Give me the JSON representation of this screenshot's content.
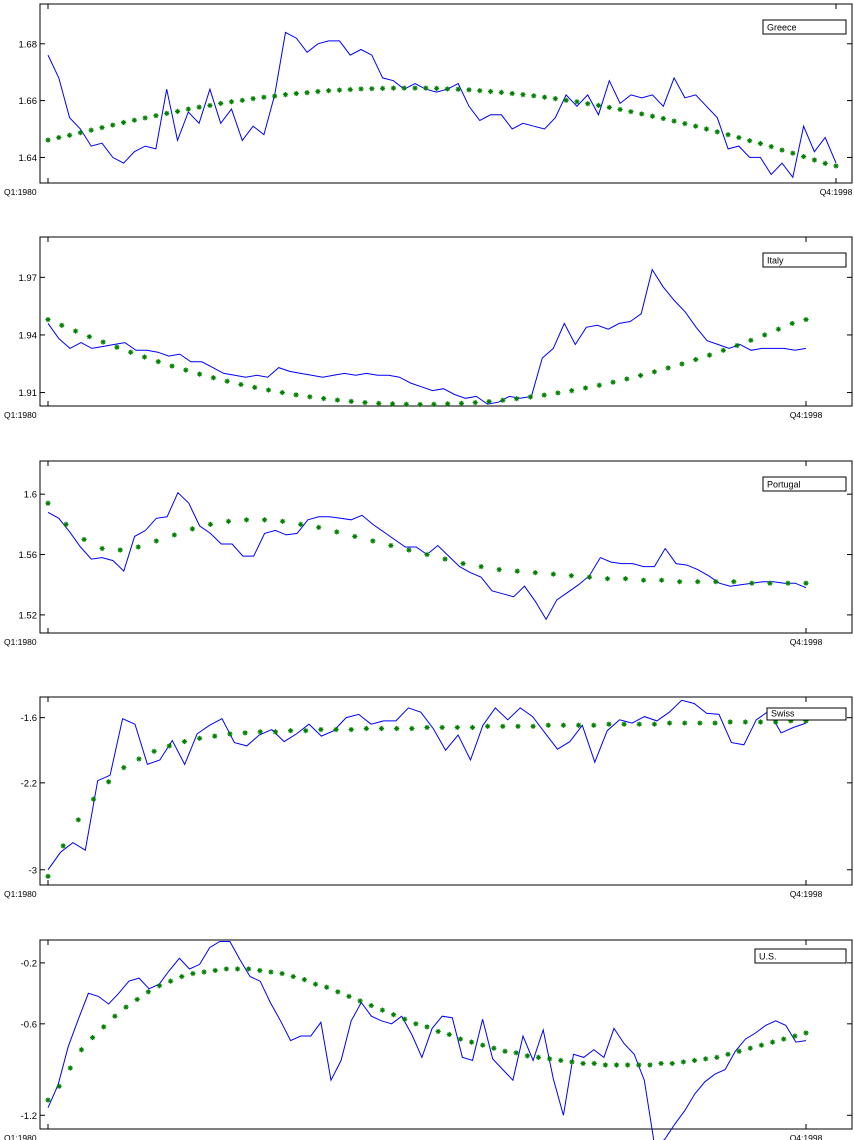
{
  "colors": {
    "actual_line": "#0000ff",
    "fitted_markers": "#008000",
    "frame": "#000000",
    "background": "#ffffff"
  },
  "chart_data": [
    {
      "type": "line",
      "legend": "Greece",
      "legend_position": "top-right",
      "x_start_label": "Q1:1980",
      "x_end_label": "Q4:1998",
      "yticks": [
        "1.64",
        "1.66",
        "1.68"
      ],
      "ylim": [
        1.631,
        1.694
      ],
      "grid": false,
      "series": [
        {
          "values": [
            1.676,
            1.668,
            1.654,
            1.65,
            1.644,
            1.645,
            1.64,
            1.638,
            1.642,
            1.644,
            1.643,
            1.664,
            1.646,
            1.656,
            1.652,
            1.664,
            1.652,
            1.657,
            1.646,
            1.651,
            1.648,
            1.662,
            1.684,
            1.682,
            1.677,
            1.68,
            1.681,
            1.681,
            1.676,
            1.678,
            1.676,
            1.668,
            1.667,
            1.664,
            1.666,
            1.664,
            1.663,
            1.664,
            1.666,
            1.658,
            1.653,
            1.655,
            1.655,
            1.65,
            1.652,
            1.651,
            1.65,
            1.654,
            1.662,
            1.658,
            1.662,
            1.655,
            1.667,
            1.659,
            1.662,
            1.661,
            1.662,
            1.658,
            1.668,
            1.661,
            1.662,
            1.658,
            1.654,
            1.643,
            1.644,
            1.64,
            1.64,
            1.634,
            1.638,
            1.633,
            1.651,
            1.642,
            1.647,
            1.638
          ]
        },
        {
          "values": [
            1.6461,
            1.647,
            1.6478,
            1.6487,
            1.6496,
            1.6505,
            1.6514,
            1.6523,
            1.6531,
            1.6539,
            1.6547,
            1.6555,
            1.6562,
            1.657,
            1.6577,
            1.6583,
            1.659,
            1.6596,
            1.6601,
            1.6607,
            1.6612,
            1.6616,
            1.6621,
            1.6625,
            1.6628,
            1.6632,
            1.6635,
            1.6637,
            1.6639,
            1.6641,
            1.6642,
            1.6643,
            1.6644,
            1.6644,
            1.6644,
            1.6644,
            1.6643,
            1.6641,
            1.664,
            1.6638,
            1.6635,
            1.6632,
            1.6629,
            1.6625,
            1.6621,
            1.6617,
            1.6612,
            1.6607,
            1.6601,
            1.6596,
            1.6589,
            1.6583,
            1.6576,
            1.6569,
            1.6561,
            1.6553,
            1.6545,
            1.6537,
            1.6528,
            1.6519,
            1.651,
            1.65,
            1.649,
            1.648,
            1.647,
            1.6459,
            1.6449,
            1.6438,
            1.6426,
            1.6415,
            1.6403,
            1.6391,
            1.6379,
            1.637
          ]
        }
      ]
    },
    {
      "type": "line",
      "legend": "Italy",
      "legend_position": "top-right",
      "x_start_label": "Q1:1980",
      "x_end_label": "Q4:1998",
      "yticks": [
        "1.91",
        "1.94",
        "1.97"
      ],
      "ylim": [
        1.903,
        1.991
      ],
      "grid": false,
      "series": [
        {
          "values": [
            1.946,
            1.938,
            1.933,
            1.936,
            1.933,
            1.934,
            1.935,
            1.936,
            1.932,
            1.932,
            1.931,
            1.929,
            1.93,
            1.926,
            1.926,
            1.923,
            1.92,
            1.919,
            1.918,
            1.919,
            1.918,
            1.923,
            1.921,
            1.92,
            1.919,
            1.918,
            1.919,
            1.92,
            1.919,
            1.92,
            1.919,
            1.919,
            1.918,
            1.915,
            1.913,
            1.911,
            1.912,
            1.909,
            1.907,
            1.908,
            1.904,
            1.905,
            1.908,
            1.907,
            1.908,
            1.928,
            1.933,
            1.946,
            1.935,
            1.944,
            1.945,
            1.943,
            1.946,
            1.947,
            1.951,
            1.974,
            1.965,
            1.958,
            1.952,
            1.944,
            1.937,
            1.935,
            1.933,
            1.935,
            1.932,
            1.933,
            1.933,
            1.933,
            1.932,
            1.933
          ]
        },
        {
          "values": [
            1.948,
            1.945,
            1.942,
            1.9391,
            1.9363,
            1.9336,
            1.931,
            1.9285,
            1.9261,
            1.9238,
            1.9217,
            1.9196,
            1.9177,
            1.9159,
            1.9142,
            1.9127,
            1.9113,
            1.91,
            1.9088,
            1.9078,
            1.9069,
            1.9061,
            1.9054,
            1.9048,
            1.9044,
            1.9041,
            1.9039,
            1.9038,
            1.9039,
            1.9041,
            1.9044,
            1.9048,
            1.9053,
            1.906,
            1.9068,
            1.9077,
            1.9087,
            1.9098,
            1.911,
            1.9124,
            1.9138,
            1.9154,
            1.9171,
            1.9189,
            1.9208,
            1.9228,
            1.9249,
            1.9272,
            1.9295,
            1.932,
            1.9345,
            1.9372,
            1.94,
            1.943,
            1.946,
            1.948
          ]
        }
      ]
    },
    {
      "type": "line",
      "legend": "Portugal",
      "legend_position": "top-right",
      "x_start_label": "Q1:1980",
      "x_end_label": "Q4:1998",
      "yticks": [
        "1.52",
        "1.56",
        "1.6"
      ],
      "ylim": [
        1.508,
        1.622
      ],
      "grid": false,
      "series": [
        {
          "values": [
            1.588,
            1.584,
            1.575,
            1.565,
            1.557,
            1.558,
            1.556,
            1.549,
            1.572,
            1.576,
            1.584,
            1.585,
            1.601,
            1.594,
            1.579,
            1.574,
            1.567,
            1.567,
            1.559,
            1.559,
            1.574,
            1.576,
            1.573,
            1.574,
            1.583,
            1.585,
            1.585,
            1.584,
            1.583,
            1.586,
            1.58,
            1.575,
            1.57,
            1.565,
            1.565,
            1.56,
            1.566,
            1.559,
            1.552,
            1.548,
            1.545,
            1.536,
            1.534,
            1.532,
            1.539,
            1.529,
            1.517,
            1.53,
            1.535,
            1.54,
            1.546,
            1.558,
            1.555,
            1.554,
            1.554,
            1.552,
            1.552,
            1.564,
            1.554,
            1.553,
            1.55,
            1.546,
            1.541,
            1.539,
            1.54,
            1.541,
            1.542,
            1.542,
            1.541,
            1.541,
            1.538
          ]
        },
        {
          "values": [
            1.594,
            1.58,
            1.57,
            1.564,
            1.563,
            1.565,
            1.569,
            1.573,
            1.577,
            1.58,
            1.582,
            1.583,
            1.583,
            1.582,
            1.58,
            1.578,
            1.575,
            1.572,
            1.569,
            1.566,
            1.563,
            1.56,
            1.557,
            1.554,
            1.552,
            1.55,
            1.549,
            1.548,
            1.547,
            1.546,
            1.545,
            1.544,
            1.544,
            1.543,
            1.543,
            1.542,
            1.542,
            1.542,
            1.542,
            1.541,
            1.541,
            1.541,
            1.541
          ]
        }
      ]
    },
    {
      "type": "line",
      "legend": "Swiss",
      "legend_position": "top-right",
      "x_start_label": "Q1:1980",
      "x_end_label": "Q4:1998",
      "yticks": [
        "-3",
        "-2.2",
        "-1.6"
      ],
      "ylim": [
        -3.14,
        -1.41
      ],
      "grid": false,
      "series": [
        {
          "values": [
            -3.0,
            -2.84,
            -2.75,
            -2.82,
            -2.18,
            -2.13,
            -1.61,
            -1.66,
            -2.03,
            -1.99,
            -1.81,
            -2.03,
            -1.75,
            -1.67,
            -1.61,
            -1.83,
            -1.86,
            -1.76,
            -1.71,
            -1.82,
            -1.75,
            -1.66,
            -1.77,
            -1.72,
            -1.6,
            -1.57,
            -1.66,
            -1.63,
            -1.63,
            -1.51,
            -1.55,
            -1.7,
            -1.9,
            -1.76,
            -1.99,
            -1.67,
            -1.51,
            -1.62,
            -1.51,
            -1.59,
            -1.74,
            -1.89,
            -1.82,
            -1.67,
            -2.01,
            -1.72,
            -1.62,
            -1.65,
            -1.59,
            -1.63,
            -1.55,
            -1.44,
            -1.47,
            -1.56,
            -1.57,
            -1.83,
            -1.85,
            -1.62,
            -1.54,
            -1.74,
            -1.69,
            -1.65
          ]
        },
        {
          "values": [
            -3.06,
            -2.78,
            -2.54,
            -2.35,
            -2.19,
            -2.06,
            -1.98,
            -1.91,
            -1.86,
            -1.82,
            -1.79,
            -1.77,
            -1.75,
            -1.74,
            -1.73,
            -1.73,
            -1.72,
            -1.72,
            -1.71,
            -1.71,
            -1.71,
            -1.7,
            -1.7,
            -1.7,
            -1.7,
            -1.69,
            -1.69,
            -1.69,
            -1.69,
            -1.68,
            -1.68,
            -1.68,
            -1.68,
            -1.67,
            -1.67,
            -1.67,
            -1.67,
            -1.66,
            -1.66,
            -1.66,
            -1.66,
            -1.65,
            -1.65,
            -1.65,
            -1.65,
            -1.64,
            -1.64,
            -1.64,
            -1.64,
            -1.63,
            -1.63
          ]
        }
      ]
    },
    {
      "type": "line",
      "legend": "U.S.",
      "legend_position": "top-right",
      "x_start_label": "Q1:1980",
      "x_end_label": "Q4:1998",
      "yticks": [
        "-1.2",
        "-0.6",
        "-0.2"
      ],
      "ylim": [
        -1.29,
        -0.05
      ],
      "grid": false,
      "series": [
        {
          "values": [
            -1.15,
            -1.0,
            -0.75,
            -0.57,
            -0.4,
            -0.42,
            -0.47,
            -0.4,
            -0.32,
            -0.3,
            -0.37,
            -0.34,
            -0.25,
            -0.17,
            -0.24,
            -0.21,
            -0.1,
            -0.06,
            -0.06,
            -0.18,
            -0.29,
            -0.32,
            -0.46,
            -0.58,
            -0.71,
            -0.68,
            -0.68,
            -0.59,
            -0.97,
            -0.84,
            -0.58,
            -0.46,
            -0.55,
            -0.58,
            -0.6,
            -0.55,
            -0.67,
            -0.82,
            -0.63,
            -0.55,
            -0.56,
            -0.82,
            -0.84,
            -0.57,
            -0.83,
            -0.9,
            -0.97,
            -0.68,
            -0.84,
            -0.64,
            -0.96,
            -1.2,
            -0.8,
            -0.82,
            -0.77,
            -0.82,
            -0.63,
            -0.73,
            -0.8,
            -0.97,
            -1.39,
            -1.36,
            -1.26,
            -1.17,
            -1.06,
            -0.98,
            -0.93,
            -0.9,
            -0.78,
            -0.7,
            -0.66,
            -0.61,
            -0.58,
            -0.61,
            -0.72,
            -0.71
          ]
        },
        {
          "values": [
            -1.1,
            -1.01,
            -0.89,
            -0.77,
            -0.69,
            -0.62,
            -0.55,
            -0.49,
            -0.44,
            -0.39,
            -0.35,
            -0.32,
            -0.29,
            -0.27,
            -0.26,
            -0.25,
            -0.24,
            -0.24,
            -0.24,
            -0.25,
            -0.26,
            -0.27,
            -0.29,
            -0.31,
            -0.34,
            -0.36,
            -0.39,
            -0.42,
            -0.45,
            -0.48,
            -0.51,
            -0.54,
            -0.57,
            -0.6,
            -0.62,
            -0.65,
            -0.67,
            -0.7,
            -0.72,
            -0.74,
            -0.76,
            -0.78,
            -0.79,
            -0.81,
            -0.82,
            -0.83,
            -0.84,
            -0.85,
            -0.86,
            -0.86,
            -0.87,
            -0.87,
            -0.87,
            -0.87,
            -0.87,
            -0.86,
            -0.86,
            -0.85,
            -0.84,
            -0.83,
            -0.82,
            -0.8,
            -0.78,
            -0.76,
            -0.74,
            -0.72,
            -0.7,
            -0.68,
            -0.66
          ]
        }
      ]
    }
  ]
}
